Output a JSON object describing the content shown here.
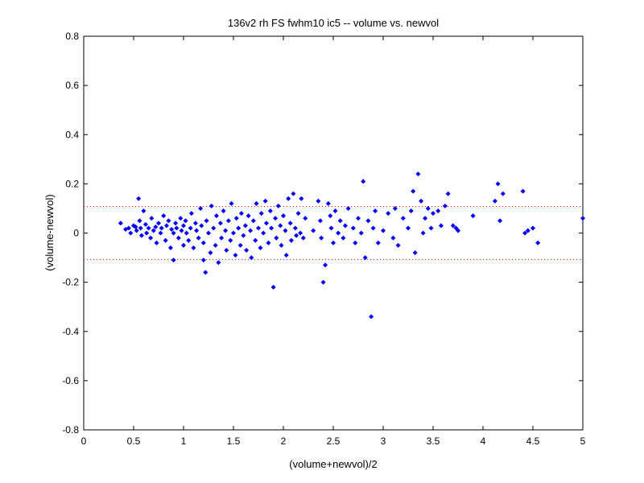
{
  "chart_data": {
    "type": "scatter",
    "title": "136v2 rh FS fwhm10 ic5 -- volume vs. newvol",
    "xlabel": "(volume+newvol)/2",
    "ylabel": "(volume-newvol)",
    "xlim": [
      0,
      5
    ],
    "ylim": [
      -0.8,
      0.8
    ],
    "x_ticks": [
      0,
      0.5,
      1,
      1.5,
      2,
      2.5,
      3,
      3.5,
      4,
      4.5,
      5
    ],
    "x_tick_labels": [
      "0",
      "0.5",
      "1",
      "1.5",
      "2",
      "2.5",
      "3",
      "3.5",
      "4",
      "4.5",
      "5"
    ],
    "y_ticks": [
      -0.8,
      -0.6,
      -0.4,
      -0.2,
      0,
      0.2,
      0.4,
      0.6,
      0.8
    ],
    "y_tick_labels": [
      "-0.8",
      "-0.6",
      "-0.4",
      "-0.2",
      "0",
      "0.2",
      "0.4",
      "0.6",
      "0.8"
    ],
    "grid": false,
    "marker_color": "#0000ff",
    "reference_line_color": "#ff0000",
    "reference_lines": [
      0.108,
      -0.108
    ],
    "series": [
      {
        "points": [
          [
            0.37,
            0.04
          ],
          [
            0.42,
            0.015
          ],
          [
            0.45,
            0.02
          ],
          [
            0.47,
            0.0
          ],
          [
            0.5,
            0.03
          ],
          [
            0.52,
            0.025
          ],
          [
            0.53,
            0.01
          ],
          [
            0.55,
            0.14
          ],
          [
            0.56,
            0.05
          ],
          [
            0.57,
            0.02
          ],
          [
            0.58,
            -0.01
          ],
          [
            0.6,
            0.09
          ],
          [
            0.62,
            0.035
          ],
          [
            0.63,
            0.0
          ],
          [
            0.65,
            0.02
          ],
          [
            0.67,
            -0.02
          ],
          [
            0.68,
            0.06
          ],
          [
            0.7,
            0.01
          ],
          [
            0.72,
            0.025
          ],
          [
            0.73,
            -0.04
          ],
          [
            0.75,
            0.04
          ],
          [
            0.77,
            0.0
          ],
          [
            0.78,
            0.02
          ],
          [
            0.8,
            0.07
          ],
          [
            0.82,
            -0.03
          ],
          [
            0.83,
            0.03
          ],
          [
            0.85,
            0.05
          ],
          [
            0.87,
            -0.06
          ],
          [
            0.88,
            0.015
          ],
          [
            0.9,
            0.0
          ],
          [
            0.9,
            -0.11
          ],
          [
            0.92,
            0.04
          ],
          [
            0.93,
            0.02
          ],
          [
            0.95,
            -0.02
          ],
          [
            0.97,
            0.06
          ],
          [
            0.98,
            0.01
          ],
          [
            1.0,
            -0.05
          ],
          [
            1.0,
            0.03
          ],
          [
            1.02,
            0.05
          ],
          [
            1.03,
            0.0
          ],
          [
            1.05,
            -0.03
          ],
          [
            1.07,
            0.02
          ],
          [
            1.08,
            0.08
          ],
          [
            1.1,
            -0.06
          ],
          [
            1.12,
            0.04
          ],
          [
            1.13,
            0.01
          ],
          [
            1.15,
            -0.02
          ],
          [
            1.17,
            0.1
          ],
          [
            1.18,
            0.03
          ],
          [
            1.2,
            -0.04
          ],
          [
            1.2,
            -0.11
          ],
          [
            1.22,
            -0.16
          ],
          [
            1.23,
            0.05
          ],
          [
            1.25,
            0.0
          ],
          [
            1.27,
            -0.08
          ],
          [
            1.28,
            0.11
          ],
          [
            1.3,
            0.02
          ],
          [
            1.32,
            -0.05
          ],
          [
            1.33,
            0.07
          ],
          [
            1.35,
            -0.12
          ],
          [
            1.37,
            0.04
          ],
          [
            1.38,
            -0.02
          ],
          [
            1.4,
            0.09
          ],
          [
            1.42,
            0.01
          ],
          [
            1.43,
            -0.07
          ],
          [
            1.45,
            0.05
          ],
          [
            1.47,
            -0.03
          ],
          [
            1.48,
            0.12
          ],
          [
            1.5,
            0.0
          ],
          [
            1.52,
            -0.09
          ],
          [
            1.53,
            0.06
          ],
          [
            1.55,
            0.02
          ],
          [
            1.57,
            -0.05
          ],
          [
            1.58,
            0.08
          ],
          [
            1.6,
            -0.01
          ],
          [
            1.62,
            0.03
          ],
          [
            1.63,
            -0.07
          ],
          [
            1.65,
            0.07
          ],
          [
            1.67,
            0.01
          ],
          [
            1.68,
            -0.1
          ],
          [
            1.7,
            0.05
          ],
          [
            1.72,
            -0.03
          ],
          [
            1.73,
            0.12
          ],
          [
            1.75,
            0.02
          ],
          [
            1.77,
            -0.06
          ],
          [
            1.78,
            0.08
          ],
          [
            1.8,
            0.0
          ],
          [
            1.82,
            0.13
          ],
          [
            1.83,
            0.04
          ],
          [
            1.85,
            -0.04
          ],
          [
            1.87,
            0.09
          ],
          [
            1.88,
            0.02
          ],
          [
            1.9,
            -0.22
          ],
          [
            1.92,
            0.06
          ],
          [
            1.93,
            -0.02
          ],
          [
            1.95,
            0.11
          ],
          [
            1.97,
            0.03
          ],
          [
            1.98,
            -0.05
          ],
          [
            2.0,
            0.07
          ],
          [
            2.02,
            0.01
          ],
          [
            2.03,
            -0.09
          ],
          [
            2.05,
            0.14
          ],
          [
            2.07,
            0.04
          ],
          [
            2.08,
            -0.03
          ],
          [
            2.1,
            0.16
          ],
          [
            2.12,
            0.02
          ],
          [
            2.13,
            -0.01
          ],
          [
            2.15,
            0.08
          ],
          [
            2.17,
            0.0
          ],
          [
            2.18,
            0.14
          ],
          [
            2.2,
            -0.02
          ],
          [
            2.22,
            0.06
          ],
          [
            2.3,
            0.01
          ],
          [
            2.35,
            0.13
          ],
          [
            2.37,
            0.05
          ],
          [
            2.38,
            -0.02
          ],
          [
            2.4,
            -0.2
          ],
          [
            2.42,
            -0.13
          ],
          [
            2.45,
            0.12
          ],
          [
            2.47,
            0.07
          ],
          [
            2.48,
            0.02
          ],
          [
            2.5,
            -0.04
          ],
          [
            2.52,
            0.09
          ],
          [
            2.55,
            0.0
          ],
          [
            2.57,
            0.05
          ],
          [
            2.6,
            -0.02
          ],
          [
            2.62,
            0.03
          ],
          [
            2.65,
            0.1
          ],
          [
            2.7,
            0.02
          ],
          [
            2.72,
            -0.04
          ],
          [
            2.75,
            0.06
          ],
          [
            2.78,
            0.0
          ],
          [
            2.8,
            0.21
          ],
          [
            2.82,
            -0.1
          ],
          [
            2.85,
            0.05
          ],
          [
            2.88,
            -0.34
          ],
          [
            2.9,
            0.02
          ],
          [
            2.92,
            0.09
          ],
          [
            2.95,
            -0.04
          ],
          [
            3.0,
            0.01
          ],
          [
            3.05,
            0.08
          ],
          [
            3.1,
            -0.02
          ],
          [
            3.12,
            0.1
          ],
          [
            3.15,
            -0.05
          ],
          [
            3.2,
            0.06
          ],
          [
            3.25,
            0.02
          ],
          [
            3.28,
            0.09
          ],
          [
            3.3,
            0.17
          ],
          [
            3.32,
            -0.08
          ],
          [
            3.35,
            0.24
          ],
          [
            3.38,
            0.13
          ],
          [
            3.4,
            0.0
          ],
          [
            3.42,
            0.06
          ],
          [
            3.45,
            0.1
          ],
          [
            3.48,
            0.02
          ],
          [
            3.5,
            0.08
          ],
          [
            3.55,
            0.09
          ],
          [
            3.58,
            0.03
          ],
          [
            3.62,
            0.11
          ],
          [
            3.65,
            0.16
          ],
          [
            3.7,
            0.03
          ],
          [
            3.73,
            0.02
          ],
          [
            3.75,
            0.01
          ],
          [
            3.9,
            0.07
          ],
          [
            4.12,
            0.13
          ],
          [
            4.15,
            0.2
          ],
          [
            4.17,
            0.05
          ],
          [
            4.2,
            0.16
          ],
          [
            4.4,
            0.17
          ],
          [
            4.42,
            0.0
          ],
          [
            4.45,
            0.01
          ],
          [
            4.5,
            0.02
          ],
          [
            4.55,
            -0.04
          ],
          [
            5.0,
            0.06
          ]
        ]
      }
    ]
  }
}
